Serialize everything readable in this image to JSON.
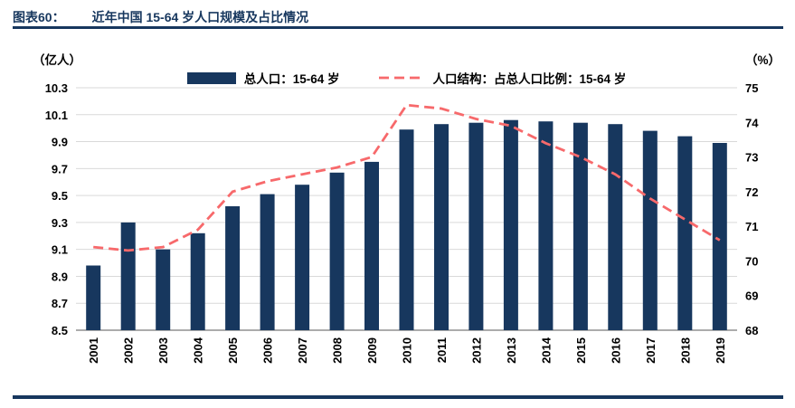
{
  "header": {
    "label": "图表60：",
    "title": "近年中国 15-64 岁人口规模及占比情况"
  },
  "axes": {
    "left_unit": "（亿人）",
    "right_unit": "（%）"
  },
  "legend": {
    "bar_label": "总人口：15-64 岁",
    "line_label": "人口结构：占总人口比例：15-64 岁"
  },
  "theme": {
    "navy": "#17375E",
    "bar_color": "#17375E",
    "line_color": "#F7696B",
    "grid_color": "#D9D9D9",
    "axis_line_color": "#595959",
    "text_color": "#000000"
  },
  "chart_data": {
    "type": "bar",
    "combo": "bar+line, dual y-axis",
    "title": "近年中国 15-64 岁人口规模及占比情况",
    "categories": [
      "2001",
      "2002",
      "2003",
      "2004",
      "2005",
      "2006",
      "2007",
      "2008",
      "2009",
      "2010",
      "2011",
      "2012",
      "2013",
      "2014",
      "2015",
      "2016",
      "2017",
      "2018",
      "2019"
    ],
    "series": [
      {
        "name": "总人口：15-64 岁",
        "type": "bar",
        "axis": "left",
        "unit": "亿人",
        "color": "#17375E",
        "values": [
          8.98,
          9.3,
          9.1,
          9.22,
          9.42,
          9.51,
          9.58,
          9.67,
          9.75,
          9.99,
          10.03,
          10.04,
          10.06,
          10.05,
          10.04,
          10.03,
          9.98,
          9.94,
          9.89
        ]
      },
      {
        "name": "人口结构：占总人口比例：15-64 岁",
        "type": "line",
        "line_style": "dashed",
        "axis": "right",
        "unit": "%",
        "color": "#F7696B",
        "values": [
          70.4,
          70.3,
          70.4,
          70.9,
          72.0,
          72.3,
          72.5,
          72.7,
          73.0,
          74.5,
          74.4,
          74.1,
          73.9,
          73.4,
          73.0,
          72.5,
          71.8,
          71.2,
          70.6
        ]
      }
    ],
    "left_axis": {
      "label": "（亿人）",
      "min": 8.5,
      "max": 10.3,
      "step": 0.2
    },
    "right_axis": {
      "label": "（%）",
      "min": 68,
      "max": 75,
      "step": 1
    },
    "grid": true,
    "legend_position": "top-center"
  }
}
